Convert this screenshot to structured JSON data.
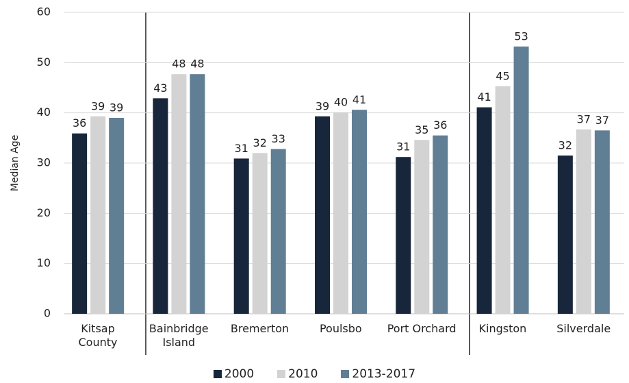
{
  "chart_data": {
    "type": "bar",
    "y_label": "Median Age",
    "categories": [
      "Kitsap\nCounty",
      "Bainbridge\nIsland",
      "Bremerton",
      "Poulsbo",
      "Port Orchard",
      "Kingston",
      "Silverdale"
    ],
    "series": [
      {
        "name": "2000",
        "color": "#17263a",
        "values": [
          35.9,
          42.9,
          30.9,
          39.3,
          31.2,
          41.1,
          31.5
        ],
        "value_labels": [
          "36",
          "43",
          "31",
          "39",
          "31",
          "41",
          "32"
        ]
      },
      {
        "name": "2010",
        "color": "#d3d3d3",
        "values": [
          39.3,
          47.7,
          32.0,
          40.1,
          34.6,
          45.3,
          36.7
        ],
        "value_labels": [
          "39",
          "48",
          "32",
          "40",
          "35",
          "45",
          "37"
        ]
      },
      {
        "name": "2013-2017",
        "color": "#607f95",
        "values": [
          39.0,
          47.7,
          32.8,
          40.6,
          35.5,
          53.2,
          36.5
        ],
        "value_labels": [
          "39",
          "48",
          "33",
          "41",
          "36",
          "53",
          "37"
        ]
      }
    ],
    "ylim": [
      0,
      60
    ],
    "yticks": [
      0,
      10,
      20,
      30,
      40,
      50,
      60
    ],
    "grid": true,
    "legend": "bottom"
  }
}
